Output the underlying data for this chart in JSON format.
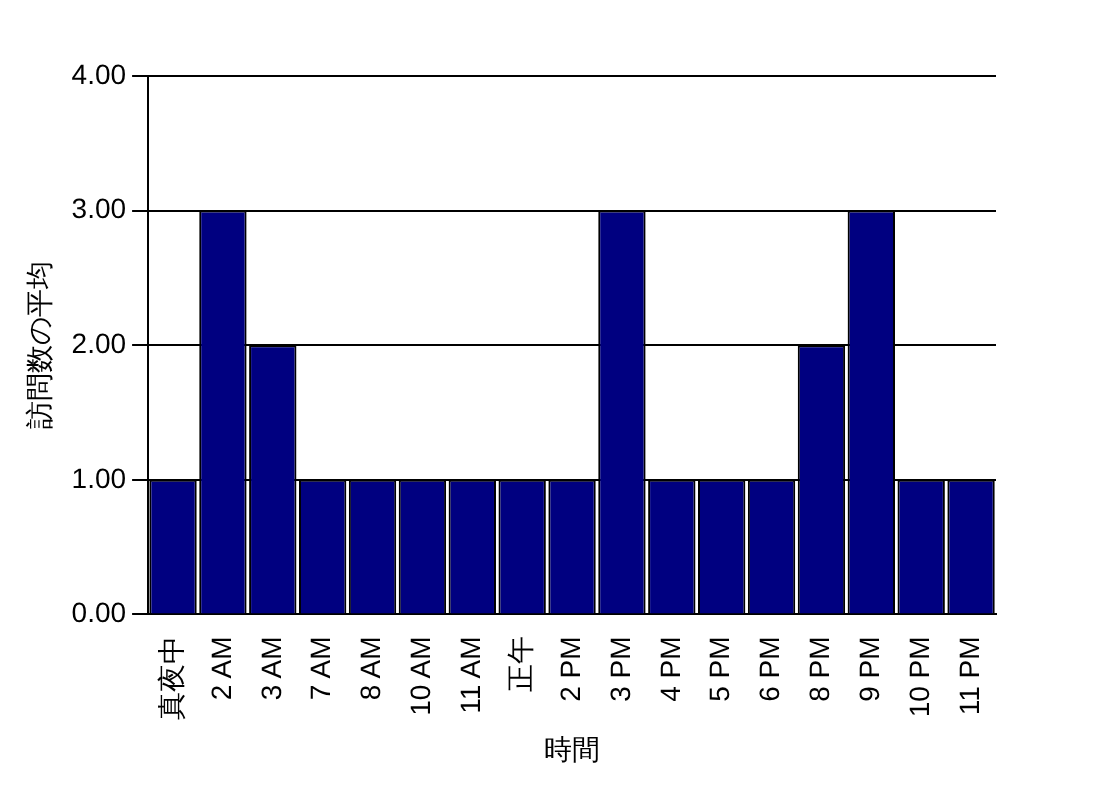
{
  "chart_data": {
    "type": "bar",
    "xlabel": "時間",
    "ylabel": "訪問数の平均",
    "categories": [
      "真夜中",
      "2 AM",
      "3 AM",
      "7 AM",
      "8 AM",
      "10 AM",
      "11 AM",
      "正午",
      "2 PM",
      "3 PM",
      "4 PM",
      "5 PM",
      "6 PM",
      "8 PM",
      "9 PM",
      "10 PM",
      "11 PM"
    ],
    "values": [
      1,
      3,
      2,
      1,
      1,
      1,
      1,
      1,
      1,
      3,
      1,
      1,
      1,
      2,
      3,
      1,
      1
    ],
    "color": "#000080",
    "ylim": [
      0,
      4
    ],
    "yticks": [
      {
        "value": 0,
        "label": "0.00"
      },
      {
        "value": 1,
        "label": "1.00"
      },
      {
        "value": 2,
        "label": "2.00"
      },
      {
        "value": 3,
        "label": "3.00"
      },
      {
        "value": 4,
        "label": "4.00"
      }
    ],
    "grid": "y",
    "legend": false
  }
}
